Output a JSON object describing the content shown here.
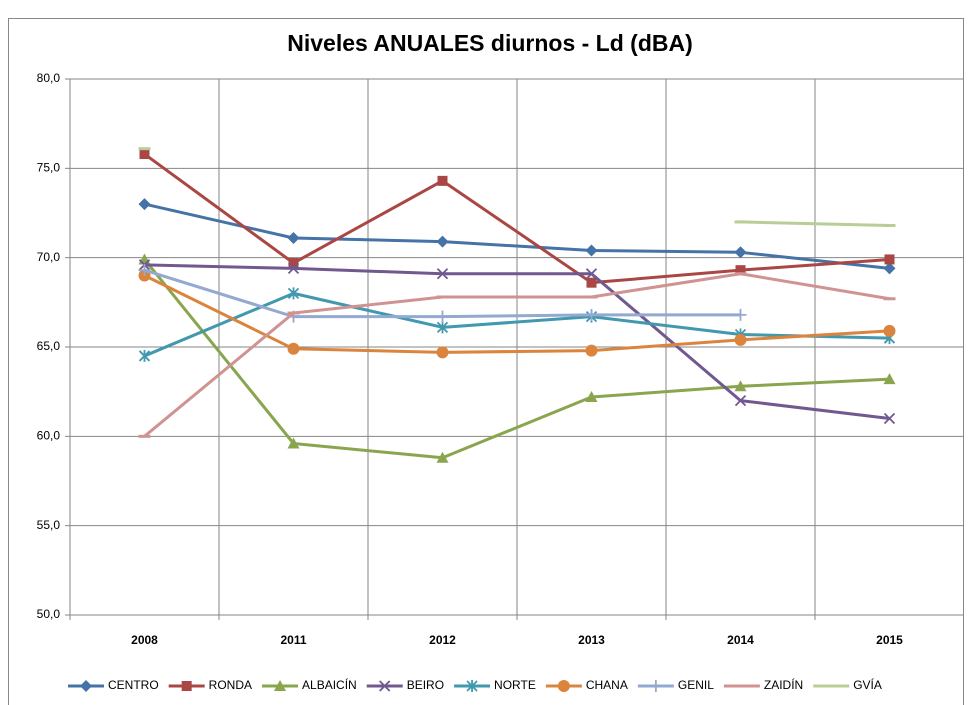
{
  "chart_data": {
    "type": "line",
    "title": "Niveles ANUALES diurnos - Ld (dBA)",
    "categories": [
      "2008",
      "2011",
      "2012",
      "2013",
      "2014",
      "2015"
    ],
    "series": [
      {
        "name": "CENTRO",
        "color": "#4572A7",
        "marker": "diamond",
        "values": [
          73.0,
          71.1,
          70.9,
          70.4,
          70.3,
          69.4
        ]
      },
      {
        "name": "RONDA",
        "color": "#AA4643",
        "marker": "square",
        "values": [
          75.8,
          69.7,
          74.3,
          68.6,
          69.3,
          69.9
        ]
      },
      {
        "name": "ALBAICÍN",
        "color": "#89A54E",
        "marker": "triangle",
        "values": [
          69.9,
          59.6,
          58.8,
          62.2,
          62.8,
          63.2
        ]
      },
      {
        "name": "BEIRO",
        "color": "#71588F",
        "marker": "x",
        "values": [
          69.6,
          69.4,
          69.1,
          69.1,
          62.0,
          61.0
        ]
      },
      {
        "name": "NORTE",
        "color": "#4198AF",
        "marker": "star",
        "values": [
          64.5,
          68.0,
          66.1,
          66.7,
          65.7,
          65.5
        ]
      },
      {
        "name": "CHANA",
        "color": "#DB843D",
        "marker": "circle",
        "values": [
          69.0,
          64.9,
          64.7,
          64.8,
          65.4,
          65.9
        ]
      },
      {
        "name": "GENIL",
        "color": "#93A9CF",
        "marker": "plus",
        "values": [
          69.3,
          66.7,
          66.7,
          66.8,
          66.8,
          null
        ]
      },
      {
        "name": "ZAIDÍN",
        "color": "#D19392",
        "marker": "dash",
        "values": [
          60.0,
          66.9,
          67.8,
          67.8,
          69.1,
          67.7
        ]
      },
      {
        "name": "GVÍA",
        "color": "#B9CD96",
        "marker": "dash",
        "values": [
          76.1,
          null,
          null,
          null,
          72.0,
          71.8
        ]
      }
    ],
    "ylim": [
      50,
      80
    ],
    "yticks": [
      {
        "value": 50,
        "label": "50,0"
      },
      {
        "value": 55,
        "label": "55,0"
      },
      {
        "value": 60,
        "label": "60,0"
      },
      {
        "value": 65,
        "label": "65,0"
      },
      {
        "value": 70,
        "label": "70,0"
      },
      {
        "value": 75,
        "label": "75,0"
      },
      {
        "value": 80,
        "label": "80,0"
      }
    ],
    "grid": true,
    "legend": "bottom"
  }
}
